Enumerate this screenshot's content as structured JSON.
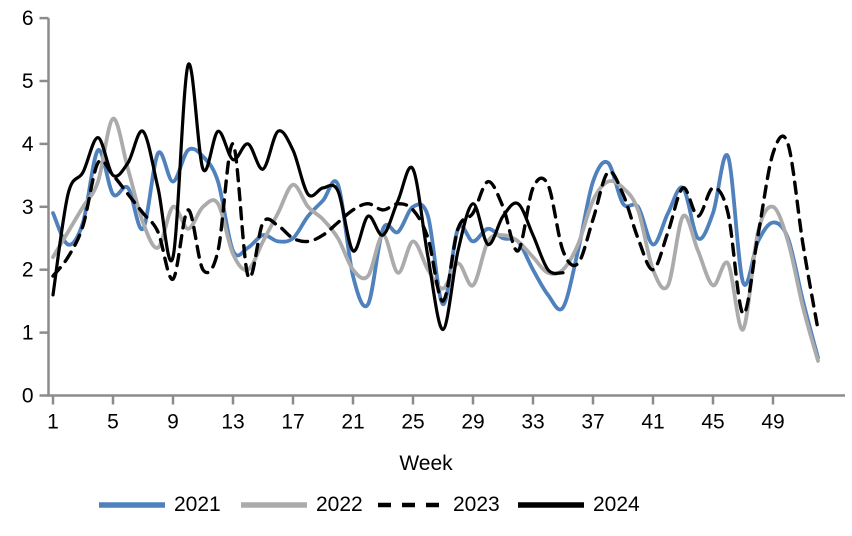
{
  "chart_data": {
    "type": "line",
    "title": "",
    "xlabel": "Week",
    "ylabel": "",
    "xlim": [
      1,
      52
    ],
    "ylim": [
      0,
      6
    ],
    "x_ticks": [
      1,
      5,
      9,
      13,
      17,
      21,
      25,
      29,
      33,
      37,
      41,
      45,
      49
    ],
    "y_ticks": [
      0,
      1,
      2,
      3,
      4,
      5,
      6
    ],
    "grid": false,
    "legend_position": "bottom",
    "axis_color": "#8C8C8C",
    "series": [
      {
        "name": "2021",
        "color": "#4F81BD",
        "dash": "solid",
        "start_week": 1,
        "values": [
          2.9,
          2.4,
          2.75,
          3.9,
          3.2,
          3.3,
          2.65,
          3.85,
          3.4,
          3.9,
          3.8,
          3.4,
          2.3,
          2.35,
          2.55,
          2.45,
          2.5,
          2.85,
          3.1,
          3.35,
          1.9,
          1.45,
          2.65,
          2.6,
          3.0,
          2.85,
          1.45,
          2.65,
          2.45,
          2.65,
          2.5,
          2.45,
          2.0,
          1.6,
          1.4,
          2.3,
          3.4,
          3.7,
          3.05,
          3.0,
          2.4,
          2.9,
          3.3,
          2.5,
          2.9,
          3.8,
          1.8,
          2.45,
          2.75,
          2.5,
          1.5,
          0.6
        ]
      },
      {
        "name": "2022",
        "color": "#ABABAB",
        "dash": "solid",
        "start_week": 1,
        "values": [
          2.2,
          2.6,
          3.0,
          3.4,
          4.4,
          3.6,
          2.75,
          2.35,
          3.0,
          2.65,
          3.0,
          3.05,
          2.25,
          2.0,
          2.45,
          2.9,
          3.35,
          3.0,
          2.8,
          2.5,
          2.0,
          1.9,
          2.55,
          1.95,
          2.45,
          2.0,
          1.7,
          2.1,
          1.75,
          2.45,
          2.55,
          2.45,
          2.2,
          1.95,
          2.0,
          2.4,
          3.1,
          3.4,
          3.3,
          2.95,
          2.0,
          1.75,
          2.85,
          2.3,
          1.75,
          2.1,
          1.05,
          2.6,
          3.0,
          2.45,
          1.4,
          0.55
        ]
      },
      {
        "name": "2023",
        "color": "#000000",
        "dash": "dashed",
        "start_week": 1,
        "values": [
          1.9,
          2.2,
          2.7,
          3.7,
          3.5,
          3.2,
          2.9,
          2.6,
          1.85,
          2.95,
          2.0,
          2.3,
          4.0,
          1.9,
          2.75,
          2.7,
          2.5,
          2.45,
          2.55,
          2.75,
          2.95,
          3.05,
          2.95,
          3.05,
          2.95,
          2.5,
          1.5,
          2.65,
          2.9,
          3.4,
          3.0,
          2.3,
          3.3,
          3.35,
          2.3,
          2.1,
          2.8,
          3.55,
          3.2,
          2.5,
          2.0,
          2.6,
          3.3,
          2.85,
          3.3,
          2.9,
          1.3,
          2.55,
          3.85,
          4.0,
          2.4,
          1.05
        ]
      },
      {
        "name": "2024",
        "color": "#000000",
        "dash": "solid",
        "start_week": 1,
        "values": [
          1.6,
          3.2,
          3.55,
          4.1,
          3.5,
          3.7,
          4.2,
          3.3,
          2.2,
          5.25,
          3.6,
          4.2,
          3.75,
          4.0,
          3.6,
          4.2,
          3.9,
          3.2,
          3.3,
          3.25,
          2.3,
          2.85,
          2.55,
          3.1,
          3.6,
          2.2,
          1.05,
          2.3,
          3.05,
          2.4,
          2.85,
          3.05,
          2.55,
          2.0,
          1.95
        ]
      }
    ],
    "legend": [
      {
        "label": "2021"
      },
      {
        "label": "2022"
      },
      {
        "label": "2023"
      },
      {
        "label": "2024"
      }
    ]
  }
}
